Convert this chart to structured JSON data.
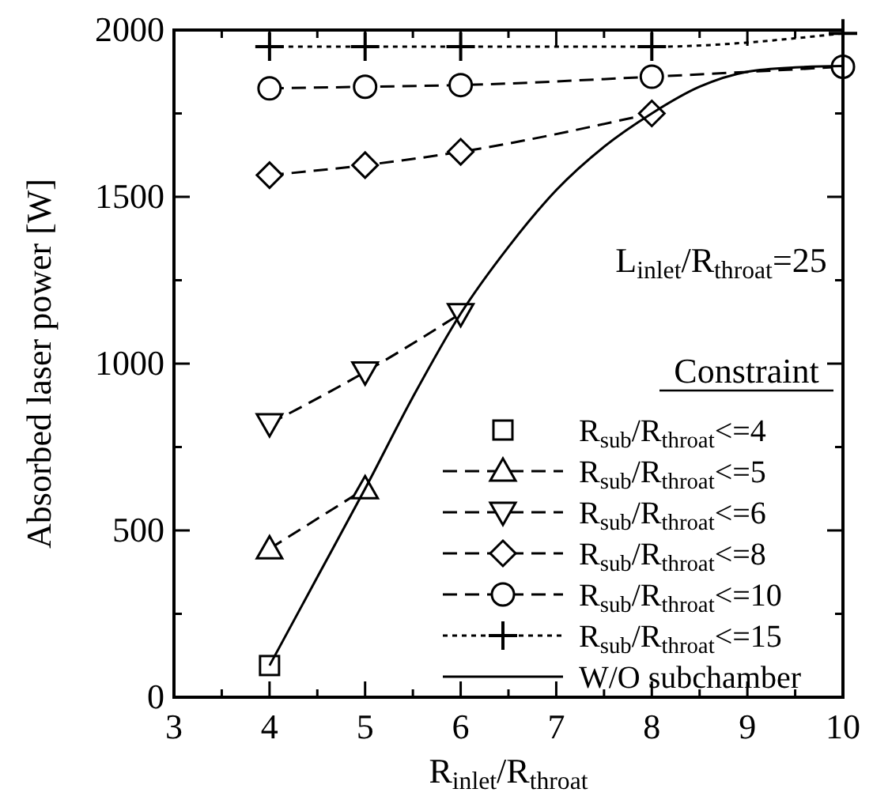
{
  "chart_data": {
    "type": "line",
    "xlabel": "R$_{inlet}$/R$_{throat}$",
    "ylabel": "Absorbed laser power [W]",
    "legend_title": "Constraint",
    "legend": "bottom right",
    "grid": false,
    "annotations": [
      "L$_{inlet}$/R$_{throat}$=25"
    ],
    "xlim": [
      3,
      10
    ],
    "xticks": [
      3,
      {
        "value": 3.5,
        "label": null
      },
      4,
      {
        "value": 4.5,
        "label": null
      },
      5,
      {
        "value": 5.5,
        "label": null
      },
      6,
      {
        "value": 6.5,
        "label": null
      },
      7,
      {
        "value": 7.5,
        "label": null
      },
      8,
      {
        "value": 8.5,
        "label": null
      },
      9,
      {
        "value": 9.5,
        "label": null
      },
      10
    ],
    "ylim": [
      0,
      2000
    ],
    "yticks": [
      0,
      {
        "value": 250,
        "label": null
      },
      500,
      {
        "value": 750,
        "label": null
      },
      1000,
      {
        "value": 1250,
        "label": null
      },
      1500,
      {
        "value": 1750,
        "label": null
      },
      2000
    ],
    "series": [
      {
        "name": "R$_{sub}$/R$_{throat}$<=4",
        "color": "#000000",
        "marker": "square",
        "x": [
          4
        ],
        "values": [
          95
        ]
      },
      {
        "name": "R$_{sub}$/R$_{throat}$<=5",
        "color": "#000000",
        "marker": "triangle",
        "line_style": "dashed",
        "x": [
          4,
          5
        ],
        "values": [
          445,
          625
        ]
      },
      {
        "name": "R$_{sub}$/R$_{throat}$<=6",
        "color": "#000000",
        "marker": "triangle-down",
        "line_style": "dashed",
        "x": [
          4,
          5,
          6
        ],
        "values": [
          820,
          975,
          1150
        ]
      },
      {
        "name": "R$_{sub}$/R$_{throat}$<=8",
        "color": "#000000",
        "marker": "diamond",
        "line_style": "dashed",
        "x": [
          4,
          5,
          6,
          8
        ],
        "values": [
          1565,
          1595,
          1635,
          1750
        ]
      },
      {
        "name": "R$_{sub}$/R$_{throat}$<=10",
        "color": "#000000",
        "marker": "circle",
        "line_style": "dashed",
        "x": [
          4,
          5,
          6,
          8,
          10
        ],
        "values": [
          1825,
          1830,
          1835,
          1860,
          1890
        ]
      },
      {
        "name": "R$_{sub}$/R$_{throat}$<=15",
        "color": "#000000",
        "marker": "cross",
        "line_style": "dotted",
        "x": [
          4,
          5,
          6,
          8,
          10
        ],
        "values": [
          1950,
          1950,
          1950,
          1950,
          1990
        ]
      },
      {
        "name": "W/O subchamber",
        "color": "#000000",
        "marker": "none",
        "line_style": "solid",
        "x": [
          4,
          4.5,
          5,
          5.5,
          6,
          6.5,
          7,
          7.5,
          8,
          8.5,
          9,
          9.5,
          10
        ],
        "values": [
          95,
          360,
          625,
          900,
          1150,
          1350,
          1520,
          1650,
          1750,
          1830,
          1875,
          1888,
          1892
        ]
      }
    ]
  }
}
